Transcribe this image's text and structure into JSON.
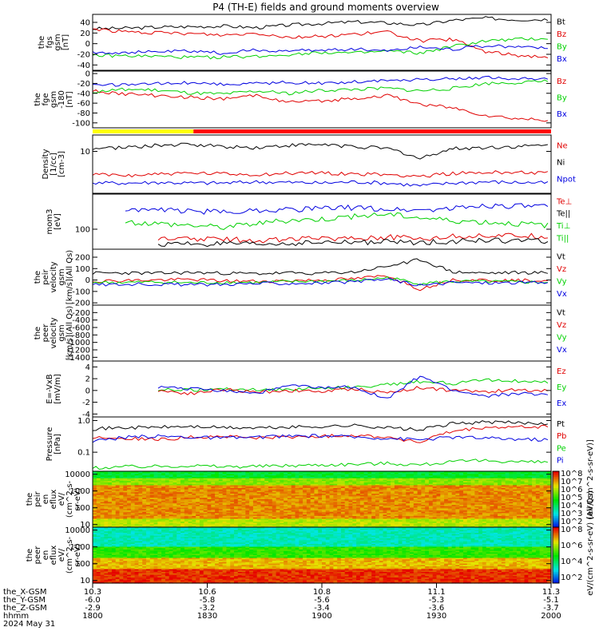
{
  "title": "P4 (TH-E) fields and ground moments overview",
  "colors": {
    "black": "#000000",
    "red": "#e00000",
    "green": "#00d000",
    "blue": "#0000e0",
    "yellow": "#ffff00",
    "barred": "#ff0000"
  },
  "panels": [
    {
      "id": "fgs-gsm",
      "ylabel": [
        "the",
        "fgs",
        "gsm",
        "[nT]"
      ],
      "ylim": [
        -50,
        55
      ],
      "ticks": [
        "40",
        "20",
        "0",
        "-20",
        "-40"
      ],
      "legend": [
        {
          "text": "Bt",
          "color": "black"
        },
        {
          "text": "Bz",
          "color": "red"
        },
        {
          "text": "By",
          "color": "green"
        },
        {
          "text": "Bx",
          "color": "blue"
        }
      ],
      "series": [
        {
          "name": "Bt",
          "color": "black",
          "values": [
            28,
            29,
            31,
            32,
            33,
            30,
            35,
            38,
            41,
            39,
            35,
            44,
            48,
            45,
            46
          ]
        },
        {
          "name": "Bz",
          "color": "red",
          "values": [
            28,
            22,
            20,
            19,
            16,
            20,
            12,
            14,
            18,
            22,
            5,
            8,
            -15,
            -22,
            -25
          ]
        },
        {
          "name": "By",
          "color": "green",
          "values": [
            -22,
            -23,
            -24,
            -26,
            -25,
            -24,
            -20,
            -16,
            -18,
            -14,
            -18,
            -5,
            5,
            8,
            10
          ]
        },
        {
          "name": "Bx",
          "color": "blue",
          "values": [
            -16,
            -17,
            -15,
            -14,
            -18,
            -12,
            -14,
            -12,
            -10,
            -13,
            -6,
            -10,
            -4,
            -6,
            -8
          ]
        }
      ]
    },
    {
      "id": "fge-gsm",
      "ylabel": [
        "the",
        "fge",
        "gsm",
        "-180",
        "[nT]"
      ],
      "ylim": [
        -110,
        5
      ],
      "ticks": [
        "0",
        "-20",
        "-40",
        "-60",
        "-80",
        "-100"
      ],
      "legend": [
        {
          "text": "Bz",
          "color": "red"
        },
        {
          "text": "By",
          "color": "green"
        },
        {
          "text": "Bx",
          "color": "blue"
        }
      ],
      "series": [
        {
          "name": "Bz",
          "color": "red",
          "values": [
            -35,
            -42,
            -45,
            -48,
            -52,
            -44,
            -58,
            -56,
            -50,
            -45,
            -62,
            -70,
            -85,
            -92,
            -95
          ]
        },
        {
          "name": "By",
          "color": "green",
          "values": [
            -38,
            -32,
            -34,
            -40,
            -42,
            -36,
            -40,
            -34,
            -32,
            -30,
            -35,
            -30,
            -20,
            -18,
            -16
          ]
        },
        {
          "name": "Bx",
          "color": "blue",
          "values": [
            -22,
            -24,
            -20,
            -18,
            -22,
            -20,
            -18,
            -20,
            -16,
            -14,
            -12,
            -10,
            -8,
            -10,
            -12
          ]
        }
      ]
    },
    {
      "id": "density",
      "ylabel": [
        "Density",
        "[1/cc]",
        "[cm-3]"
      ],
      "ylim": [
        0.6,
        30
      ],
      "log": true,
      "ticks": [
        "10"
      ],
      "tickvals": [
        10
      ],
      "legend": [
        {
          "text": "Ne",
          "color": "red"
        },
        {
          "text": "Ni",
          "color": "black"
        },
        {
          "text": "Npot",
          "color": "blue"
        }
      ],
      "series": [
        {
          "name": "Ni",
          "color": "black",
          "values": [
            12,
            13,
            15,
            16,
            14,
            13,
            15,
            16,
            14,
            12,
            6,
            12,
            13,
            14,
            15
          ]
        },
        {
          "name": "Ne",
          "color": "red",
          "values": [
            2.1,
            2.0,
            2.2,
            2.3,
            2.2,
            2.1,
            2.3,
            2.4,
            2.2,
            2.1,
            1.9,
            2.3,
            2.4,
            2.5,
            2.4
          ]
        },
        {
          "name": "Npot",
          "color": "blue",
          "values": [
            1.2,
            1.2,
            1.25,
            1.2,
            1.2,
            1.3,
            1.25,
            1.2,
            1.3,
            1.2,
            1.0,
            1.2,
            1.3,
            1.25,
            1.2
          ]
        }
      ]
    },
    {
      "id": "temperature",
      "ylabel": [
        "mom3",
        "[eV]"
      ],
      "ylim": [
        40,
        500
      ],
      "log": true,
      "ticks": [
        "100"
      ],
      "tickvals": [
        100
      ],
      "legend": [
        {
          "text": "Te⊥",
          "color": "red"
        },
        {
          "text": "Te||",
          "color": "black"
        },
        {
          "text": "Ti⊥",
          "color": "green"
        },
        {
          "text": "Ti||",
          "color": "green"
        }
      ],
      "series": [
        {
          "name": "Ti⊥",
          "color": "blue",
          "values": [
            null,
            250,
            240,
            230,
            220,
            240,
            250,
            260,
            270,
            250,
            240,
            260,
            300,
            290,
            280
          ]
        },
        {
          "name": "Ti||",
          "color": "green",
          "values": [
            null,
            140,
            130,
            120,
            110,
            130,
            150,
            160,
            180,
            200,
            170,
            150,
            140,
            130,
            120
          ]
        },
        {
          "name": "Te⊥",
          "color": "red",
          "values": [
            null,
            null,
            62,
            65,
            63,
            60,
            64,
            66,
            68,
            70,
            66,
            72,
            75,
            74,
            72
          ]
        },
        {
          "name": "Te||",
          "color": "black",
          "values": [
            null,
            null,
            50,
            52,
            51,
            50,
            52,
            54,
            55,
            56,
            54,
            58,
            60,
            59,
            58
          ]
        }
      ]
    },
    {
      "id": "peir-velocity",
      "ylabel": [
        "the",
        "peir",
        "velocity",
        "gsm",
        "[km/s](All Qs)"
      ],
      "ylim": [
        -220,
        270
      ],
      "ticks": [
        "200",
        "100",
        "0",
        "-100",
        "-200"
      ],
      "legend": [
        {
          "text": "Vt",
          "color": "black"
        },
        {
          "text": "Vz",
          "color": "red"
        },
        {
          "text": "Vy",
          "color": "green"
        },
        {
          "text": "Vx",
          "color": "blue"
        }
      ],
      "series": [
        {
          "name": "Vt",
          "color": "black",
          "values": [
            60,
            62,
            58,
            65,
            60,
            55,
            62,
            60,
            70,
            120,
            180,
            70,
            60,
            65,
            62
          ]
        },
        {
          "name": "Vz",
          "color": "red",
          "values": [
            -10,
            -5,
            0,
            5,
            -8,
            -12,
            -5,
            0,
            10,
            40,
            -80,
            5,
            0,
            -5,
            -2
          ]
        },
        {
          "name": "Vy",
          "color": "green",
          "values": [
            -20,
            -22,
            -18,
            -25,
            -20,
            -22,
            -15,
            -10,
            -5,
            20,
            -30,
            -12,
            -15,
            -18,
            -20
          ]
        },
        {
          "name": "Vx",
          "color": "blue",
          "values": [
            -40,
            -38,
            -35,
            -42,
            -36,
            -30,
            -28,
            -25,
            -20,
            10,
            -50,
            -20,
            -25,
            -22,
            -24
          ]
        }
      ]
    },
    {
      "id": "peer-velocity",
      "ylabel": [
        "the",
        "peer",
        "velocity",
        "gsm",
        "[km/s](All Qs)"
      ],
      "ylim": [
        -1500,
        0
      ],
      "ticks": [
        "-200",
        "-400",
        "-600",
        "-800",
        "-1000",
        "-1200",
        "-1400"
      ],
      "legend": [
        {
          "text": "Vt",
          "color": "black"
        },
        {
          "text": "Vz",
          "color": "red"
        },
        {
          "text": "Vy",
          "color": "green"
        },
        {
          "text": "Vx",
          "color": "blue"
        }
      ],
      "series": []
    },
    {
      "id": "efield",
      "ylabel": [
        "E=-VxB",
        "[mV/m]"
      ],
      "ylim": [
        -4.5,
        5
      ],
      "ticks": [
        "4",
        "2",
        "0",
        "-2",
        "-4"
      ],
      "legend": [
        {
          "text": "Ez",
          "color": "red"
        },
        {
          "text": "Ey",
          "color": "green"
        },
        {
          "text": "Ex",
          "color": "blue"
        }
      ],
      "series": [
        {
          "name": "Ey",
          "color": "green",
          "values": [
            null,
            null,
            0.2,
            0.0,
            0.3,
            0.1,
            0.2,
            0.4,
            0.5,
            1.0,
            1.5,
            1.2,
            1.8,
            1.6,
            1.4
          ]
        },
        {
          "name": "Ez",
          "color": "red",
          "values": [
            null,
            null,
            0.0,
            -0.5,
            0.2,
            -0.3,
            0.0,
            -0.2,
            0.3,
            -0.4,
            0.5,
            0.0,
            -0.2,
            0.1,
            0.0
          ]
        },
        {
          "name": "Ex",
          "color": "blue",
          "values": [
            null,
            null,
            0.5,
            0.3,
            0.0,
            -0.5,
            0.8,
            0.4,
            0.6,
            -1.5,
            2.5,
            0.0,
            -1.0,
            -0.5,
            -0.8
          ]
        }
      ]
    },
    {
      "id": "pressure",
      "ylabel": [
        "Pressure",
        "[nPa]"
      ],
      "ylim": [
        0.025,
        1.3
      ],
      "log": true,
      "ticks": [
        "1.0",
        "0.1"
      ],
      "tickvals": [
        1.0,
        0.1
      ],
      "legend": [
        {
          "text": "Pt",
          "color": "black"
        },
        {
          "text": "Pb",
          "color": "red"
        },
        {
          "text": "Pe",
          "color": "green"
        },
        {
          "text": "Pi",
          "color": "blue"
        }
      ],
      "series": [
        {
          "name": "Pt",
          "color": "black",
          "values": [
            0.55,
            0.6,
            0.62,
            0.65,
            0.6,
            0.58,
            0.62,
            0.65,
            0.7,
            0.6,
            0.5,
            0.8,
            0.9,
            0.85,
            0.82
          ]
        },
        {
          "name": "Pb",
          "color": "red",
          "values": [
            0.3,
            0.28,
            0.25,
            0.3,
            0.32,
            0.28,
            0.3,
            0.32,
            0.35,
            0.3,
            0.2,
            0.45,
            0.6,
            0.62,
            0.65
          ]
        },
        {
          "name": "Pi",
          "color": "blue",
          "values": [
            0.22,
            0.3,
            0.32,
            0.3,
            0.28,
            0.3,
            0.32,
            0.33,
            0.3,
            0.28,
            0.25,
            0.3,
            0.28,
            0.26,
            0.25
          ]
        },
        {
          "name": "Pe",
          "color": "green",
          "values": [
            0.032,
            0.035,
            0.036,
            0.038,
            0.035,
            0.036,
            0.038,
            0.04,
            0.042,
            0.045,
            0.04,
            0.05,
            0.055,
            0.05,
            0.048
          ]
        }
      ]
    },
    {
      "id": "peir-eflux",
      "ylabel": [
        "the",
        "peir",
        "en",
        "eflux",
        "eV/",
        "(cm^2-s-",
        "sr-eV)"
      ],
      "ylim": [
        7,
        15000
      ],
      "log": true,
      "spectrogram": true,
      "ticks": [
        "10000",
        "1000",
        "100",
        "10"
      ],
      "tickvals": [
        10000,
        1000,
        100,
        10
      ],
      "colorbar_ticks": [
        "10^8",
        "10^7",
        "10^6",
        "10^5",
        "10^4",
        "10^3",
        "10^2"
      ],
      "colorbar_label": "eV/(cm^2-s-sr-eV) (All Qs)"
    },
    {
      "id": "peer-eflux",
      "ylabel": [
        "the",
        "peer",
        "en",
        "eflux",
        "eV/",
        "(cm^2-s-",
        "sr-eV)"
      ],
      "ylim": [
        7,
        15000
      ],
      "log": true,
      "spectrogram": true,
      "ticks": [
        "10000",
        "1000",
        "100",
        "10"
      ],
      "tickvals": [
        10000,
        1000,
        100,
        10
      ],
      "colorbar_ticks": [
        "10^8",
        "10^6",
        "10^4",
        "10^2"
      ],
      "colorbar_label": "eV/(cm^2-s-sr-eV) (All Qs)"
    }
  ],
  "time_axis": {
    "labels": [
      "the_X-GSM",
      "the_Y-GSM",
      "the_Z-GSM",
      "hhmm",
      "2024 May 31"
    ],
    "ticks": [
      {
        "x": "10.3",
        "y": "-6.0",
        "z": "-2.9",
        "hhmm": "1800"
      },
      {
        "x": "10.6",
        "y": "-5.8",
        "z": "-3.2",
        "hhmm": "1830"
      },
      {
        "x": "10.8",
        "y": "-5.6",
        "z": "-3.4",
        "hhmm": "1900"
      },
      {
        "x": "11.1",
        "y": "-5.3",
        "z": "-3.6",
        "hhmm": "1930"
      },
      {
        "x": "11.3",
        "y": "-5.1",
        "z": "-3.7",
        "hhmm": "2000"
      }
    ]
  },
  "mode_bar": [
    {
      "color": "yellow",
      "from": 0.0,
      "to": 0.22
    },
    {
      "color": "barred",
      "from": 0.22,
      "to": 1.0
    }
  ],
  "bottom_colorbar_label": "[eV/(cm^2-s-sr-eV)]",
  "chart_data": {
    "type": "line",
    "title": "P4 (TH-E) fields and ground moments overview",
    "x": [
      "1800",
      "1830",
      "1900",
      "1930",
      "2000"
    ],
    "xlabel": "hhmm",
    "grid": false,
    "legend_placement": "right"
  }
}
